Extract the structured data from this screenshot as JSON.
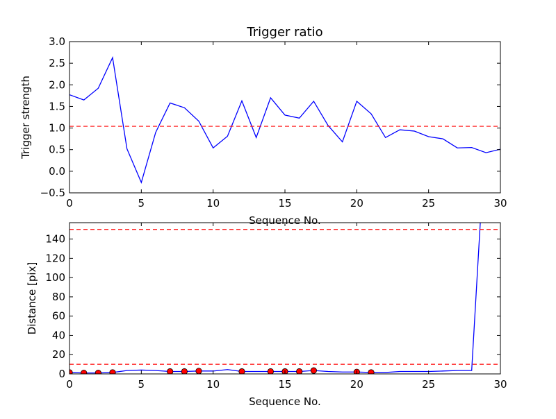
{
  "chart_data": [
    {
      "type": "line",
      "title": "Trigger ratio",
      "xlabel": "Sequence No.",
      "ylabel": "Trigger strength",
      "xlim": [
        0,
        30
      ],
      "ylim": [
        -0.5,
        3.0
      ],
      "xticks": [
        0,
        5,
        10,
        15,
        20,
        25,
        30
      ],
      "yticks": [
        -0.5,
        0.0,
        0.5,
        1.0,
        1.5,
        2.0,
        2.5,
        3.0
      ],
      "ytick_labels": [
        "−0.5",
        "0.0",
        "0.5",
        "1.0",
        "1.5",
        "2.0",
        "2.5",
        "3.0"
      ],
      "grid": false,
      "series": [
        {
          "color": "#0000ff",
          "x": [
            0,
            1,
            2,
            3,
            4,
            5,
            6,
            7,
            8,
            9,
            10,
            11,
            12,
            13,
            14,
            15,
            16,
            17,
            18,
            19,
            20,
            21,
            22,
            23,
            24,
            25,
            26,
            27,
            28,
            29,
            30
          ],
          "values": [
            1.77,
            1.65,
            1.92,
            2.63,
            0.52,
            -0.26,
            0.9,
            1.58,
            1.47,
            1.16,
            0.54,
            0.81,
            1.63,
            0.78,
            1.7,
            1.3,
            1.23,
            1.62,
            1.06,
            0.68,
            1.62,
            1.33,
            0.78,
            0.96,
            0.93,
            0.8,
            0.75,
            0.54,
            0.55,
            0.43,
            0.51
          ]
        }
      ],
      "hlines": [
        {
          "y": 1.04,
          "color": "#ff0000",
          "style": "dashed"
        }
      ]
    },
    {
      "type": "line",
      "title": "",
      "xlabel": "Sequence No.",
      "ylabel": "Distance [pix]",
      "xlim": [
        0,
        30
      ],
      "ylim": [
        0,
        157
      ],
      "xticks": [
        0,
        5,
        10,
        15,
        20,
        25,
        30
      ],
      "yticks": [
        0,
        20,
        40,
        60,
        80,
        100,
        120,
        140
      ],
      "grid": false,
      "series": [
        {
          "color": "#0000ff",
          "x": [
            0,
            1,
            2,
            3,
            4,
            5,
            6,
            7,
            8,
            9,
            10,
            11,
            12,
            13,
            14,
            15,
            16,
            17,
            18,
            19,
            20,
            21,
            22,
            23,
            24,
            25,
            26,
            27,
            28,
            28.6
          ],
          "values": [
            1.5,
            1.0,
            1.0,
            1.5,
            3.5,
            4.0,
            3.5,
            2.5,
            2.5,
            3.0,
            3.0,
            4.5,
            2.5,
            2.5,
            2.5,
            2.5,
            2.5,
            3.5,
            2.5,
            2.0,
            2.0,
            1.5,
            1.5,
            2.5,
            2.5,
            2.5,
            3.0,
            3.5,
            3.5,
            157
          ]
        }
      ],
      "markers": {
        "color": "#ff0000",
        "x": [
          0,
          1,
          2,
          3,
          7,
          8,
          9,
          12,
          14,
          15,
          16,
          17,
          20,
          21
        ],
        "values": [
          1.5,
          1.0,
          1.0,
          1.5,
          2.5,
          2.5,
          3.0,
          2.5,
          2.5,
          2.5,
          2.5,
          3.5,
          2.0,
          1.5
        ]
      },
      "hlines": [
        {
          "y": 150,
          "color": "#ff0000",
          "style": "dashed"
        },
        {
          "y": 10,
          "color": "#ff0000",
          "style": "dashed"
        }
      ]
    }
  ]
}
